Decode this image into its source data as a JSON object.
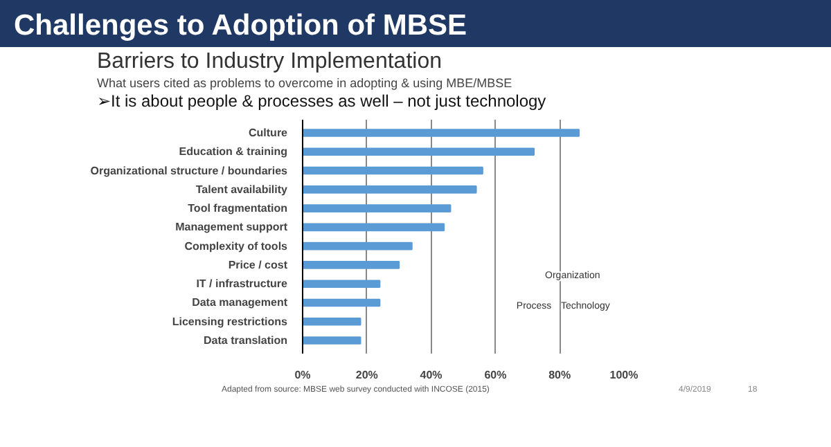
{
  "chart_data": {
    "type": "bar",
    "orientation": "horizontal",
    "title": "Challenges to Adoption of MBSE",
    "subtitle": "Barriers to Industry Implementation",
    "categories": [
      "Culture",
      "Education & training",
      "Organizational structure / boundaries",
      "Talent availability",
      "Tool fragmentation",
      "Management support",
      "Complexity of tools",
      "Price / cost",
      "IT / infrastructure",
      "Data management",
      "Licensing restrictions",
      "Data translation"
    ],
    "values": [
      86,
      72,
      56,
      54,
      46,
      44,
      34,
      30,
      24,
      24,
      18,
      18
    ],
    "color": "#5b9bd5",
    "xlim": [
      0,
      100
    ],
    "xticks": [
      {
        "value": 0,
        "label": "0%"
      },
      {
        "value": 20,
        "label": "20%"
      },
      {
        "value": 40,
        "label": "40%"
      },
      {
        "value": 60,
        "label": "60%"
      },
      {
        "value": 80,
        "label": "80%"
      },
      {
        "value": 100,
        "label": "100%"
      }
    ],
    "grid": "x",
    "annotations": [
      "What users cited as problems to overcome in adopting & using MBE/MBSE",
      "➢It is about people & processes as well – not just technology",
      "Adapted from source: MBSE web survey conducted with INCOSE (2015)",
      "4/9/2019",
      "18",
      "Organization",
      "Process",
      "Technology"
    ]
  }
}
